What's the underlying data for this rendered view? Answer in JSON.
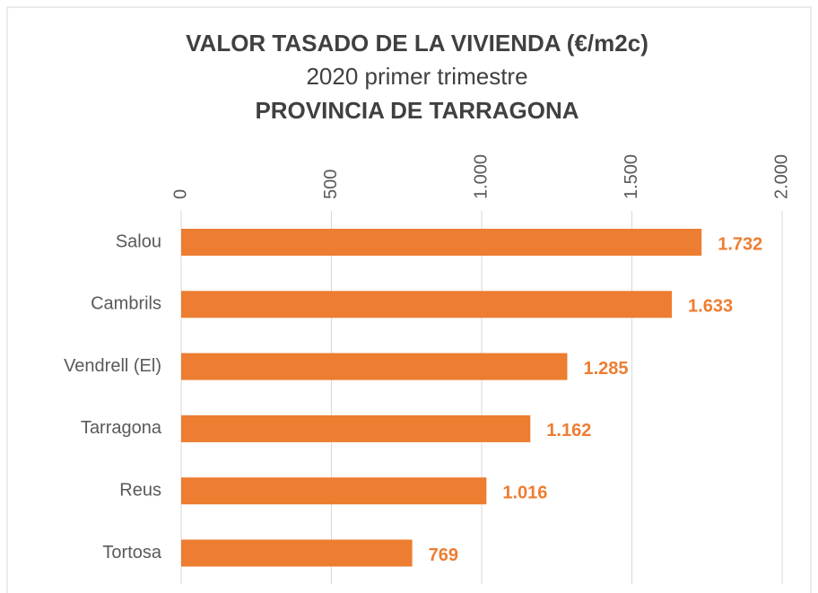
{
  "chart_data": {
    "type": "hbar",
    "title": "VALOR TASADO DE LA VIVIENDA (€/m2c)",
    "subtitle": "2020 primer trimestre",
    "title2": "PROVINCIA DE TARRAGONA",
    "categories": [
      "Salou",
      "Cambrils",
      "Vendrell (El)",
      "Tarragona",
      "Reus",
      "Tortosa"
    ],
    "values": [
      1732,
      1633,
      1285,
      1162,
      1016,
      769
    ],
    "value_labels": [
      "1.732",
      "1.633",
      "1.285",
      "1.162",
      "1.016",
      "769"
    ],
    "color": "#ed7d31",
    "xlim": [
      0,
      2000
    ],
    "xticks": [
      0,
      500,
      {
        "value": 1000,
        "label": "1.000"
      },
      {
        "value": 1500,
        "label": "1.500"
      },
      {
        "value": 2000,
        "label": "2.000"
      }
    ],
    "grid": true
  }
}
